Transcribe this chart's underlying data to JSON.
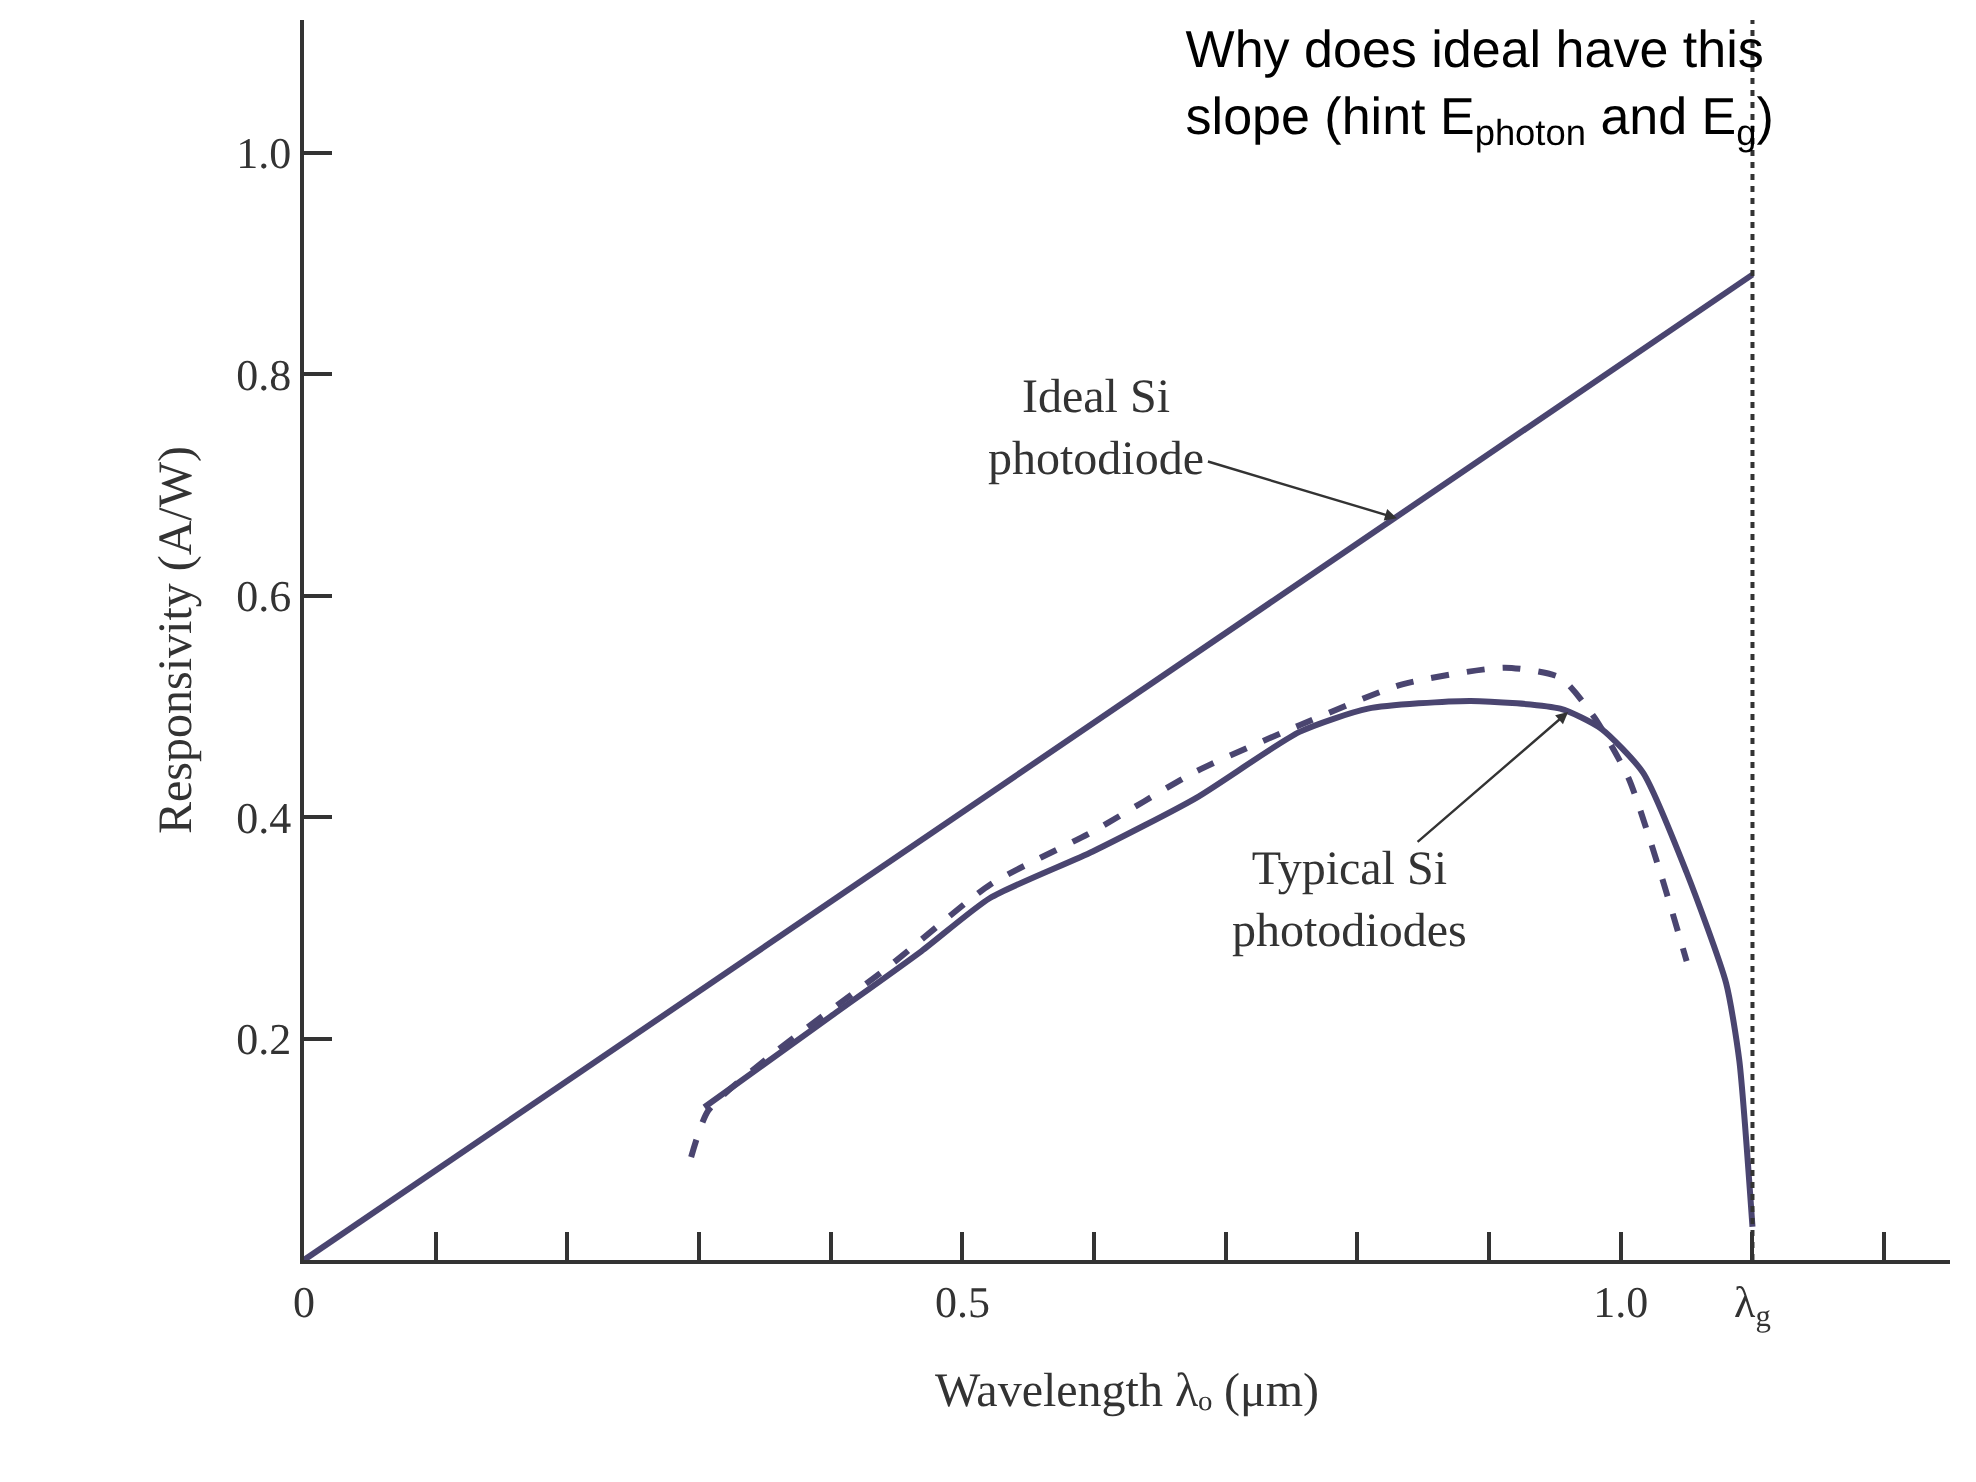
{
  "chart_data": {
    "type": "line",
    "title": "Why does ideal have this\nslope (hint E$_{photon}$ and E$_{g}$)",
    "xlabel": "Wavelength λₒ (μm)",
    "ylabel": "Responsivity (A/W)",
    "series": [
      {
        "color": "#4a4570",
        "line_style": "solid",
        "x": [
          0,
          1.1
        ],
        "values": [
          0,
          0.89
        ]
      },
      {
        "color": "#4a4570",
        "line_style": "solid",
        "x": [
          0.304,
          0.4,
          0.469,
          0.521,
          0.599,
          0.677,
          0.756,
          0.808,
          0.886,
          0.954,
          0.985,
          1.017,
          1.05,
          1.08,
          1.09,
          1.1
        ],
        "values": [
          0.138,
          0.22,
          0.279,
          0.327,
          0.369,
          0.417,
          0.477,
          0.498,
          0.505,
          0.498,
          0.48,
          0.44,
          0.35,
          0.25,
          0.18,
          0.03
        ]
      },
      {
        "color": "#4a4570",
        "line_style": "dashed",
        "x": [
          0.294,
          0.307,
          0.359,
          0.443,
          0.521,
          0.599,
          0.677,
          0.756,
          0.834,
          0.912,
          0.954,
          0.98,
          1.006,
          1.03,
          1.05
        ],
        "values": [
          0.093,
          0.135,
          0.189,
          0.264,
          0.339,
          0.387,
          0.441,
          0.483,
          0.52,
          0.535,
          0.526,
          0.49,
          0.435,
          0.35,
          0.27
        ]
      }
    ],
    "xlim": [
      0,
      1.25
    ],
    "ylim": [
      0,
      1.12
    ],
    "xticks": [
      0,
      {
        "value": 0.1,
        "label": null
      },
      {
        "value": 0.2,
        "label": null
      },
      {
        "value": 0.3,
        "label": null
      },
      {
        "value": 0.4,
        "label": null
      },
      0.5,
      {
        "value": 0.6,
        "label": null
      },
      {
        "value": 0.7,
        "label": null
      },
      {
        "value": 0.8,
        "label": null
      },
      {
        "value": 0.9,
        "label": null
      },
      {
        "value": 1.0,
        "label": "1.0"
      },
      {
        "value": 1.1,
        "label": "λ$_{g}$"
      },
      {
        "value": 1.2,
        "label": null
      }
    ],
    "yticks": [
      0.2,
      0.4,
      0.6,
      0.8,
      {
        "value": 1.0,
        "label": "1.0"
      }
    ],
    "ref_lines": [
      {
        "axis": "x",
        "value": 1.1,
        "line_style": "dotted",
        "color": "#333333"
      }
    ],
    "annotations": [
      {
        "text": "Ideal Si\nphotodiode",
        "x": 0.83,
        "y": 0.67
      },
      {
        "text": "Typical Si\nphotodiodes",
        "x": 0.96,
        "y": 0.495
      }
    ],
    "marker": "none"
  }
}
